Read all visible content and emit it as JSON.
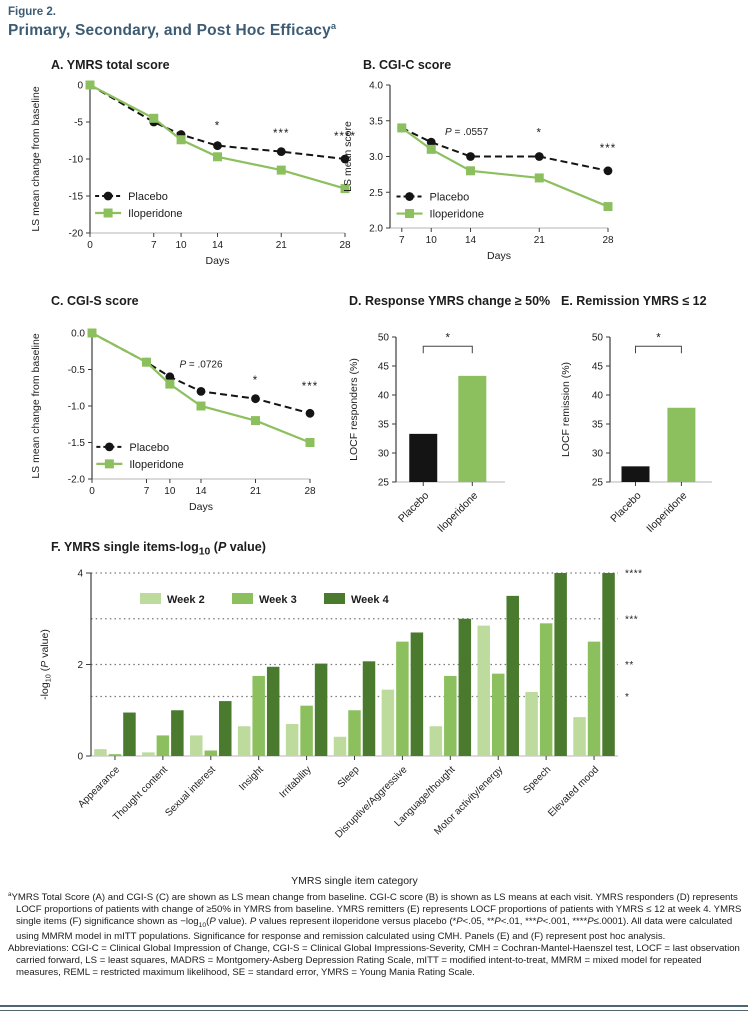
{
  "figure": {
    "label": "Figure 2.",
    "title": "Primary, Secondary, and Post Hoc Efficacy{sup}a{/sup}"
  },
  "colors": {
    "title_blue": "#3d5c73",
    "placebo_black": "#141414",
    "iloperidone_green": "#8cc05e",
    "week2_light_green": "#bcdb9d",
    "week3_green": "#8cc05e",
    "week4_dark_green": "#4a7a2e",
    "rule_slate": "#50656f"
  },
  "chart_data": [
    {
      "id": "a",
      "type": "line",
      "title": "A. YMRS total score",
      "xlabel": "Days",
      "ylabel": "LS mean change from baseline",
      "x": [
        0,
        7,
        10,
        14,
        21,
        28
      ],
      "xlim": [
        0,
        28
      ],
      "ylim": [
        -20,
        0
      ],
      "yticks": [
        0,
        -5,
        -10,
        -15,
        -20
      ],
      "ydec": 0,
      "series": [
        {
          "name": "Placebo",
          "color": "#141414",
          "marker": "circle",
          "dash": true,
          "values": [
            0,
            -5,
            -6.7,
            -8.2,
            -9,
            -10
          ]
        },
        {
          "name": "Iloperidone",
          "color": "#8cc05e",
          "marker": "square",
          "dash": false,
          "values": [
            0,
            -4.5,
            -7.4,
            -9.7,
            -11.5,
            -14
          ]
        }
      ],
      "annotations": [
        {
          "x": 14,
          "y": -6,
          "text": "*"
        },
        {
          "x": 21,
          "y": -7,
          "text": "***"
        },
        {
          "x": 28,
          "y": -7.4,
          "text": "****"
        }
      ],
      "legend": {
        "fx": 0.02,
        "fy": 0.75
      }
    },
    {
      "id": "b",
      "type": "line",
      "title": "B. CGI-C score",
      "xlabel": "Days",
      "ylabel": "LS mean score",
      "x": [
        7,
        10,
        14,
        21,
        28
      ],
      "xlim": [
        5.8,
        28
      ],
      "ylim": [
        2,
        4
      ],
      "yticks": [
        4,
        3.5,
        3,
        2.5,
        2
      ],
      "ydec": 1,
      "series": [
        {
          "name": "Placebo",
          "color": "#141414",
          "marker": "circle",
          "dash": true,
          "values": [
            3.4,
            3.2,
            3,
            3,
            2.8
          ]
        },
        {
          "name": "Iloperidone",
          "color": "#8cc05e",
          "marker": "square",
          "dash": false,
          "values": [
            3.4,
            3.1,
            2.8,
            2.7,
            2.3
          ]
        }
      ],
      "annotations": [
        {
          "x": 13.6,
          "y": 3.3,
          "text": "{i}P{/i} = .0557"
        },
        {
          "x": 21,
          "y": 3.28,
          "text": "*"
        },
        {
          "x": 28,
          "y": 3.06,
          "text": "***"
        }
      ],
      "legend": {
        "fx": 0.03,
        "fy": 0.78
      }
    },
    {
      "id": "c",
      "type": "line",
      "title": "C. CGI-S score",
      "xlabel": "Days",
      "ylabel": "LS mean change from baseline",
      "x": [
        0,
        7,
        10,
        14,
        21,
        28
      ],
      "xlim": [
        0,
        28
      ],
      "ylim": [
        -2,
        0
      ],
      "yticks": [
        0,
        -0.5,
        -1,
        -1.5,
        -2
      ],
      "ydec": 1,
      "series": [
        {
          "name": "Placebo",
          "color": "#141414",
          "marker": "circle",
          "dash": true,
          "values": [
            0,
            -0.4,
            -0.6,
            -0.8,
            -0.9,
            -1.1
          ]
        },
        {
          "name": "Iloperidone",
          "color": "#8cc05e",
          "marker": "square",
          "dash": false,
          "values": [
            0,
            -0.4,
            -0.7,
            -1,
            -1.2,
            -1.5
          ]
        }
      ],
      "annotations": [
        {
          "x": 14,
          "y": -0.47,
          "text": "{i}P{/i} = .0726"
        },
        {
          "x": 21,
          "y": -0.7,
          "text": "*"
        },
        {
          "x": 28,
          "y": -0.78,
          "text": "***"
        }
      ],
      "legend": {
        "fx": 0.02,
        "fy": 0.78
      }
    },
    {
      "id": "d",
      "type": "bar",
      "title": "D. Response YMRS change ≥ 50%",
      "ylabel": "LOCF responders (%)",
      "categories": [
        "Placebo",
        "Iloperidone"
      ],
      "values": [
        33.3,
        43.3
      ],
      "bar_colors": [
        "#141414",
        "#8cc05e"
      ],
      "ylim": [
        25,
        50
      ],
      "yticks": [
        50,
        45,
        40,
        35,
        30,
        25
      ],
      "ydec": 0,
      "bracket": {
        "y": 48.4,
        "text": "*"
      }
    },
    {
      "id": "e",
      "type": "bar",
      "title": "E. Remission YMRS ≤ 12",
      "ylabel": "LOCF remission (%)",
      "categories": [
        "Placebo",
        "Iloperidone"
      ],
      "values": [
        27.7,
        37.8
      ],
      "bar_colors": [
        "#141414",
        "#8cc05e"
      ],
      "ylim": [
        25,
        50
      ],
      "yticks": [
        50,
        45,
        40,
        35,
        30,
        25
      ],
      "ydec": 0,
      "bracket": {
        "y": 48.4,
        "text": "*"
      }
    },
    {
      "id": "f",
      "type": "grouped-bar",
      "title": "F. YMRS single items-log{sub}10{/sub} ({i}P{/i} value)",
      "xlabel": "YMRS single item category",
      "ylabel": "-log{sub}10{/sub} ({i}P{/i} value)",
      "categories": [
        "Appearance",
        "Thought content",
        "Sexual interest",
        "Insight",
        "Irritability",
        "Sleep",
        "Disruptive/Aggressive",
        "Language/thought",
        "Motor activity/energy",
        "Speech",
        "Elevated mood"
      ],
      "ylim": [
        0,
        4
      ],
      "yticks": [
        0,
        2,
        4
      ],
      "ydec": 0,
      "series": [
        {
          "name": "Week 2",
          "color": "#bcdb9d",
          "values": [
            0.15,
            0.08,
            0.45,
            0.65,
            0.7,
            0.42,
            1.45,
            0.65,
            2.85,
            1.4,
            0.85
          ]
        },
        {
          "name": "Week 3",
          "color": "#8cc05e",
          "values": [
            0.04,
            0.45,
            0.12,
            1.75,
            1.1,
            1.0,
            2.5,
            1.75,
            1.8,
            2.9,
            2.5
          ]
        },
        {
          "name": "Week 4",
          "color": "#4a7a2e",
          "values": [
            0.95,
            1.0,
            1.2,
            1.95,
            2.02,
            2.07,
            2.7,
            3.0,
            3.5,
            4.0,
            4.0
          ]
        }
      ],
      "sig_lines": [
        {
          "y": 1.3,
          "label": "*"
        },
        {
          "y": 2,
          "label": "**"
        },
        {
          "y": 3,
          "label": "***"
        },
        {
          "y": 4,
          "label": "****"
        }
      ]
    }
  ],
  "footnotes": {
    "a": "{sup}a{/sup}YMRS Total Score (A) and CGI-S (C) are shown as LS mean change from baseline. CGI-C score (B) is shown as LS means at each visit. YMRS responders (D) represents LOCF proportions of patients with change of ≥50% in YMRS from baseline. YMRS remitters (E) represents LOCF proportions of patients with YMRS ≤ 12 at week 4. YMRS single items (F) significance shown as −log{sub}10{/sub}({i}P{/i} value). {i}P{/i} values represent iloperidone versus placebo (*{i}P{/i}<.05, **{i}P{/i}<.01, ***{i}P{/i}<.001, ****{i}P{/i}≤.0001). All data were calculated using MMRM model in mITT populations. Significance for response and remission calculated using CMH. Panels (E) and (F) represent post hoc analysis.",
    "abbreviations": "Abbreviations: CGI-C = Clinical Global Impression of Change, CGI-S = Clinical Global Impressions-Severity, CMH = Cochran-Mantel-Haenszel test, LOCF = last observation carried forward, LS = least squares, MADRS = Montgomery-Asberg Depression Rating Scale, mITT = modified intent-to-treat, MMRM = mixed model for repeated measures, REML = restricted maximum likelihood, SE = standard error, YMRS = Young Mania Rating Scale."
  }
}
